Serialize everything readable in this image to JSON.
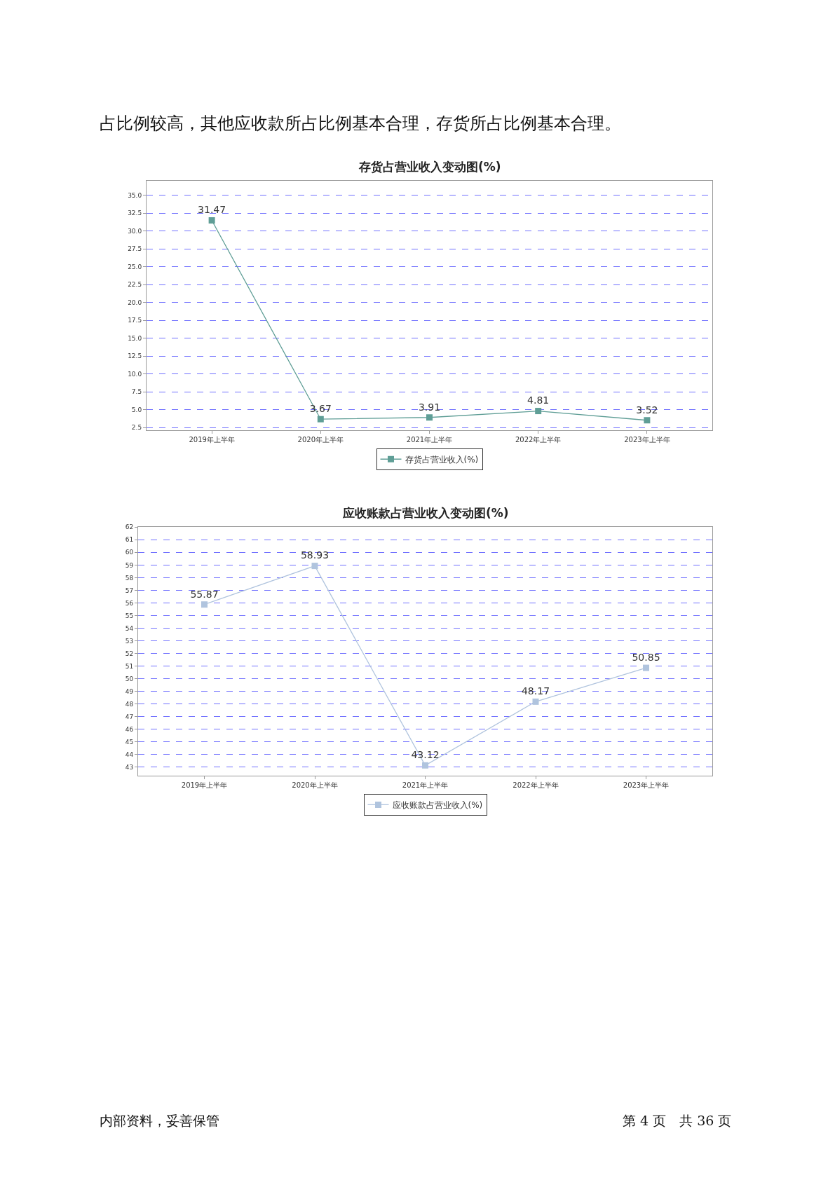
{
  "chart_data": [
    {
      "type": "line",
      "title": "存货占营业收入变动图(%)",
      "categories": [
        "2019年上半年",
        "2020年上半年",
        "2021年上半年",
        "2022年上半年",
        "2023年上半年"
      ],
      "series": [
        {
          "name": "存货占营业收入(%)",
          "color": "#5f9e96",
          "values": [
            31.47,
            3.67,
            3.91,
            4.81,
            3.52
          ]
        }
      ],
      "ylim": [
        2.14,
        37.0
      ],
      "yticks": [
        {
          "value": 2.5,
          "label": "2.5"
        },
        {
          "value": 5,
          "label": "5.0"
        },
        {
          "value": 7.5,
          "label": "7.5"
        },
        {
          "value": 10,
          "label": "10.0"
        },
        {
          "value": 12.5,
          "label": "12.5"
        },
        {
          "value": 15,
          "label": "15.0"
        },
        {
          "value": 17.5,
          "label": "17.5"
        },
        {
          "value": 20,
          "label": "20.0"
        },
        {
          "value": 22.5,
          "label": "22.5"
        },
        {
          "value": 25,
          "label": "25.0"
        },
        {
          "value": 27.5,
          "label": "27.5"
        },
        {
          "value": 30,
          "label": "30.0"
        },
        {
          "value": 32.5,
          "label": "32.5"
        },
        {
          "value": 35,
          "label": "35.0"
        }
      ],
      "grid": "y",
      "legend": "bottom",
      "marker": "square",
      "line_style": "solid",
      "data_labels": true,
      "annotations": [
        "占比例较高，其他应收款所占比例基本合理，存货所占比例基本合理。"
      ]
    },
    {
      "type": "line",
      "title": "应收账款占营业收入变动图(%)",
      "categories": [
        "2019年上半年",
        "2020年上半年",
        "2021年上半年",
        "2022年上半年",
        "2023年上半年"
      ],
      "series": [
        {
          "name": "应收账款占营业收入(%)",
          "color": "#b0c4de",
          "values": [
            55.87,
            58.93,
            43.12,
            48.17,
            50.85
          ]
        }
      ],
      "ylim": [
        42.3,
        62
      ],
      "yticks": [
        43,
        44,
        45,
        46,
        47,
        48,
        49,
        50,
        51,
        52,
        53,
        54,
        55,
        56,
        57,
        58,
        59,
        60,
        61,
        62
      ],
      "grid": "y",
      "legend": "bottom",
      "marker": "square",
      "line_style": "solid",
      "data_labels": true,
      "annotations": [
        "内部资料，妥善保管",
        "第 4 页　共 36 页"
      ]
    }
  ]
}
